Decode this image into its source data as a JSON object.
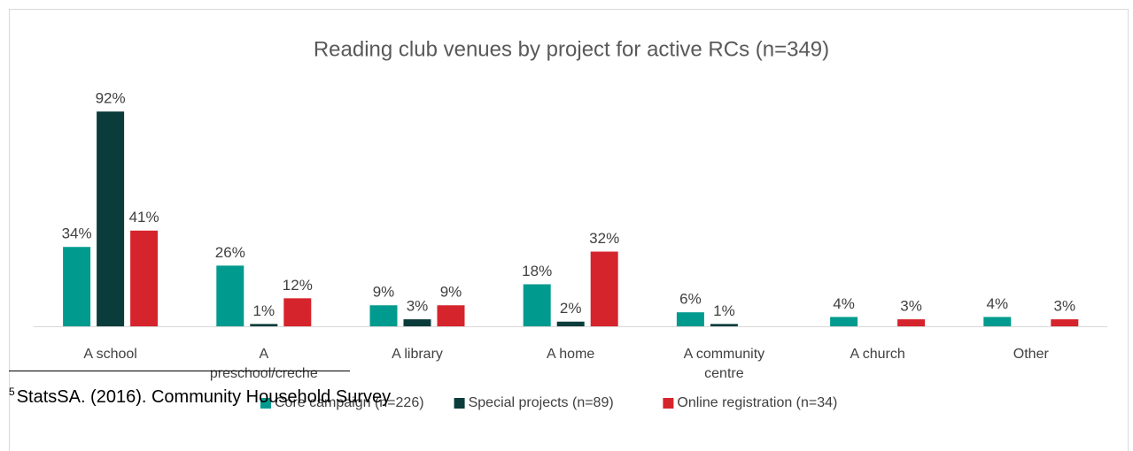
{
  "chart_data": {
    "type": "bar",
    "title": "Reading club venues by project for active RCs (n=349)",
    "categories": [
      "A school",
      "A preschool/creche",
      "A library",
      "A home",
      "A community centre",
      "A church",
      "Other"
    ],
    "series": [
      {
        "name": "Core campaign (n=226)",
        "color": "#009b8e",
        "values": [
          34,
          26,
          9,
          18,
          6,
          4,
          4
        ],
        "value_labels": [
          "34%",
          "26%",
          "9%",
          "18%",
          "6%",
          "4%",
          "4%"
        ]
      },
      {
        "name": "Special projects (n=89)",
        "color": "#0a3c3b",
        "values": [
          92,
          1,
          3,
          2,
          1,
          null,
          null
        ],
        "value_labels": [
          "92%",
          "1%",
          "3%",
          "2%",
          "1%",
          null,
          null
        ]
      },
      {
        "name": "Online registration (n=34)",
        "color": "#d6242c",
        "values": [
          41,
          12,
          9,
          32,
          null,
          3,
          3
        ],
        "value_labels": [
          "41%",
          "12%",
          "9%",
          "32%",
          null,
          "3%",
          "3%"
        ]
      }
    ],
    "legend": "bottom"
  },
  "footnote": {
    "marker": "5",
    "text": "StatsSA. (2016). Community Household Survey"
  }
}
